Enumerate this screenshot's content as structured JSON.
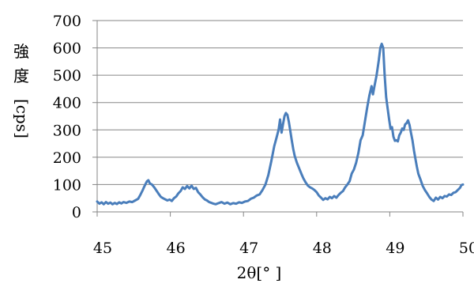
{
  "chart_data": {
    "type": "line",
    "title": "",
    "xlabel": "2θ[° ]",
    "ylabel": "強度[cps]",
    "xlim": [
      45,
      50
    ],
    "ylim": [
      0,
      700
    ],
    "x_ticks": [
      "45",
      "46",
      "47",
      "48",
      "49",
      "50"
    ],
    "y_ticks": [
      "0",
      "100",
      "200",
      "300",
      "400",
      "500",
      "600",
      "700"
    ],
    "grid": "horizontal",
    "legend": "none",
    "series": [
      {
        "color": "#4a7ebb",
        "points": [
          [
            45.0,
            38
          ],
          [
            45.03,
            30
          ],
          [
            45.06,
            35
          ],
          [
            45.09,
            28
          ],
          [
            45.12,
            36
          ],
          [
            45.15,
            30
          ],
          [
            45.18,
            34
          ],
          [
            45.21,
            28
          ],
          [
            45.24,
            33
          ],
          [
            45.27,
            29
          ],
          [
            45.3,
            35
          ],
          [
            45.33,
            31
          ],
          [
            45.36,
            36
          ],
          [
            45.4,
            33
          ],
          [
            45.44,
            38
          ],
          [
            45.48,
            36
          ],
          [
            45.52,
            42
          ],
          [
            45.56,
            48
          ],
          [
            45.59,
            62
          ],
          [
            45.62,
            78
          ],
          [
            45.65,
            96
          ],
          [
            45.68,
            112
          ],
          [
            45.7,
            116
          ],
          [
            45.72,
            104
          ],
          [
            45.75,
            100
          ],
          [
            45.78,
            90
          ],
          [
            45.81,
            78
          ],
          [
            45.84,
            66
          ],
          [
            45.87,
            55
          ],
          [
            45.9,
            50
          ],
          [
            45.93,
            46
          ],
          [
            45.96,
            42
          ],
          [
            45.99,
            45
          ],
          [
            46.02,
            40
          ],
          [
            46.05,
            50
          ],
          [
            46.08,
            56
          ],
          [
            46.11,
            68
          ],
          [
            46.14,
            76
          ],
          [
            46.17,
            90
          ],
          [
            46.2,
            84
          ],
          [
            46.23,
            95
          ],
          [
            46.26,
            86
          ],
          [
            46.29,
            96
          ],
          [
            46.32,
            84
          ],
          [
            46.35,
            88
          ],
          [
            46.38,
            72
          ],
          [
            46.41,
            64
          ],
          [
            46.44,
            54
          ],
          [
            46.47,
            46
          ],
          [
            46.5,
            42
          ],
          [
            46.53,
            36
          ],
          [
            46.56,
            33
          ],
          [
            46.59,
            30
          ],
          [
            46.62,
            28
          ],
          [
            46.66,
            32
          ],
          [
            46.7,
            36
          ],
          [
            46.74,
            30
          ],
          [
            46.78,
            34
          ],
          [
            46.82,
            28
          ],
          [
            46.86,
            32
          ],
          [
            46.9,
            30
          ],
          [
            46.94,
            35
          ],
          [
            46.98,
            33
          ],
          [
            47.02,
            38
          ],
          [
            47.06,
            40
          ],
          [
            47.1,
            48
          ],
          [
            47.14,
            52
          ],
          [
            47.18,
            60
          ],
          [
            47.22,
            64
          ],
          [
            47.26,
            80
          ],
          [
            47.3,
            100
          ],
          [
            47.34,
            135
          ],
          [
            47.38,
            185
          ],
          [
            47.42,
            240
          ],
          [
            47.45,
            270
          ],
          [
            47.48,
            300
          ],
          [
            47.5,
            338
          ],
          [
            47.52,
            290
          ],
          [
            47.54,
            320
          ],
          [
            47.56,
            350
          ],
          [
            47.58,
            362
          ],
          [
            47.6,
            355
          ],
          [
            47.62,
            330
          ],
          [
            47.64,
            296
          ],
          [
            47.66,
            262
          ],
          [
            47.68,
            230
          ],
          [
            47.7,
            205
          ],
          [
            47.73,
            180
          ],
          [
            47.76,
            160
          ],
          [
            47.79,
            140
          ],
          [
            47.82,
            122
          ],
          [
            47.85,
            108
          ],
          [
            47.88,
            96
          ],
          [
            47.91,
            90
          ],
          [
            47.94,
            86
          ],
          [
            47.97,
            80
          ],
          [
            48.0,
            72
          ],
          [
            48.03,
            60
          ],
          [
            48.06,
            52
          ],
          [
            48.09,
            44
          ],
          [
            48.12,
            50
          ],
          [
            48.15,
            46
          ],
          [
            48.18,
            55
          ],
          [
            48.21,
            50
          ],
          [
            48.24,
            58
          ],
          [
            48.27,
            52
          ],
          [
            48.3,
            62
          ],
          [
            48.33,
            70
          ],
          [
            48.36,
            76
          ],
          [
            48.39,
            90
          ],
          [
            48.42,
            100
          ],
          [
            48.45,
            112
          ],
          [
            48.48,
            140
          ],
          [
            48.51,
            155
          ],
          [
            48.54,
            180
          ],
          [
            48.57,
            215
          ],
          [
            48.6,
            262
          ],
          [
            48.63,
            280
          ],
          [
            48.66,
            330
          ],
          [
            48.69,
            380
          ],
          [
            48.72,
            425
          ],
          [
            48.75,
            460
          ],
          [
            48.77,
            430
          ],
          [
            48.79,
            460
          ],
          [
            48.82,
            500
          ],
          [
            48.85,
            555
          ],
          [
            48.87,
            600
          ],
          [
            48.89,
            615
          ],
          [
            48.91,
            600
          ],
          [
            48.93,
            500
          ],
          [
            48.95,
            420
          ],
          [
            48.97,
            380
          ],
          [
            48.99,
            340
          ],
          [
            49.01,
            305
          ],
          [
            49.03,
            310
          ],
          [
            49.05,
            275
          ],
          [
            49.07,
            260
          ],
          [
            49.09,
            262
          ],
          [
            49.11,
            258
          ],
          [
            49.13,
            280
          ],
          [
            49.15,
            290
          ],
          [
            49.17,
            305
          ],
          [
            49.19,
            300
          ],
          [
            49.21,
            320
          ],
          [
            49.23,
            325
          ],
          [
            49.25,
            335
          ],
          [
            49.27,
            318
          ],
          [
            49.29,
            288
          ],
          [
            49.31,
            262
          ],
          [
            49.33,
            225
          ],
          [
            49.35,
            195
          ],
          [
            49.37,
            165
          ],
          [
            49.39,
            140
          ],
          [
            49.42,
            118
          ],
          [
            49.45,
            95
          ],
          [
            49.48,
            80
          ],
          [
            49.51,
            68
          ],
          [
            49.54,
            55
          ],
          [
            49.57,
            45
          ],
          [
            49.6,
            40
          ],
          [
            49.63,
            52
          ],
          [
            49.66,
            45
          ],
          [
            49.69,
            55
          ],
          [
            49.72,
            50
          ],
          [
            49.75,
            58
          ],
          [
            49.78,
            56
          ],
          [
            49.81,
            64
          ],
          [
            49.84,
            62
          ],
          [
            49.87,
            70
          ],
          [
            49.9,
            72
          ],
          [
            49.93,
            80
          ],
          [
            49.96,
            88
          ],
          [
            49.98,
            98
          ],
          [
            50.0,
            100
          ]
        ]
      }
    ]
  }
}
